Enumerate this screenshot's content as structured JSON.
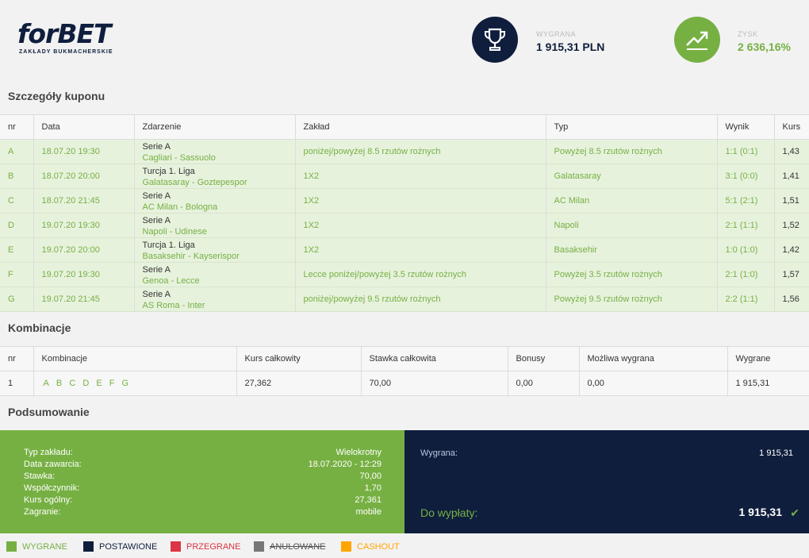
{
  "colors": {
    "green": "#76b043",
    "navy": "#0f1e3d",
    "red": "#dc3545",
    "gray": "#777777",
    "orange": "#ffa500"
  },
  "logo": {
    "main_for": "for",
    "main_bet": "BET",
    "subtitle": "ZAKŁADY BUKMACHERSKIE"
  },
  "header": {
    "win_label": "WYGRANA",
    "win_value": "1 915,31 PLN",
    "win_icon": "trophy-icon",
    "profit_label": "ZYSK",
    "profit_value": "2 636,16%",
    "profit_icon": "trending-up-icon"
  },
  "coupon": {
    "title": "Szczegóły kuponu",
    "columns": [
      "nr",
      "Data",
      "Zdarzenie",
      "Zakład",
      "Typ",
      "Wynik",
      "Kurs"
    ],
    "rows": [
      {
        "nr": "A",
        "date": "18.07.20 19:30",
        "league": "Serie A",
        "teams": "Cagliari - Sassuolo",
        "bet": "poniżej/powyżej 8.5 rzutów rożnych",
        "type": "Powyżej 8.5 rzutów rożnych",
        "result": "1:1 (0:1)",
        "odds": "1,43"
      },
      {
        "nr": "B",
        "date": "18.07.20 20:00",
        "league": "Turcja 1. Liga",
        "teams": "Galatasaray - Goztepespor",
        "bet": "1X2",
        "type": "Galatasaray",
        "result": "3:1 (0:0)",
        "odds": "1,41"
      },
      {
        "nr": "C",
        "date": "18.07.20 21:45",
        "league": "Serie A",
        "teams": "AC Milan - Bologna",
        "bet": "1X2",
        "type": "AC Milan",
        "result": "5:1 (2:1)",
        "odds": "1,51"
      },
      {
        "nr": "D",
        "date": "19.07.20 19:30",
        "league": "Serie A",
        "teams": "Napoli - Udinese",
        "bet": "1X2",
        "type": "Napoli",
        "result": "2:1 (1:1)",
        "odds": "1,52"
      },
      {
        "nr": "E",
        "date": "19.07.20 20:00",
        "league": "Turcja 1. Liga",
        "teams": "Basaksehir - Kayserispor",
        "bet": "1X2",
        "type": "Basaksehir",
        "result": "1:0 (1:0)",
        "odds": "1,42"
      },
      {
        "nr": "F",
        "date": "19.07.20 19:30",
        "league": "Serie A",
        "teams": "Genoa - Lecce",
        "bet": "Lecce poniżej/powyżej 3.5 rzutów rożnych",
        "type": "Powyżej 3.5 rzutów rożnych",
        "result": "2:1 (1:0)",
        "odds": "1,57"
      },
      {
        "nr": "G",
        "date": "19.07.20 21:45",
        "league": "Serie A",
        "teams": "AS Roma - Inter",
        "bet": "poniżej/powyżej 9.5 rzutów rożnych",
        "type": "Powyżej 9.5 rzutów rożnych",
        "result": "2:2 (1:1)",
        "odds": "1,56"
      }
    ]
  },
  "combinations": {
    "title": "Kombinacje",
    "columns": [
      "nr",
      "Kombinacje",
      "Kurs całkowity",
      "Stawka całkowita",
      "Bonusy",
      "Możliwa wygrana",
      "Wygrane"
    ],
    "rows": [
      {
        "nr": "1",
        "letters": [
          "A",
          "B",
          "C",
          "D",
          "E",
          "F",
          "G"
        ],
        "total_odds": "27,362",
        "total_stake": "70,00",
        "bonus": "0,00",
        "possible_win": "0,00",
        "won": "1 915,31"
      }
    ]
  },
  "summary": {
    "title": "Podsumowanie",
    "rows": [
      {
        "k": "Typ zakładu:",
        "v": "Wielokrotny"
      },
      {
        "k": "Data zawarcia:",
        "v": "18.07.2020 - 12:29"
      },
      {
        "k": "Stawka:",
        "v": "70,00"
      },
      {
        "k": "Współczynnik:",
        "v": "1,70"
      },
      {
        "k": "Kurs ogólny:",
        "v": "27,361"
      },
      {
        "k": "Zagranie:",
        "v": "mobile"
      }
    ],
    "win_label": "Wygrana:",
    "win_value": "1 915,31",
    "payout_label": "Do wypłaty:",
    "payout_value": "1 915,31",
    "payout_icon": "check-icon"
  },
  "legend": [
    {
      "label": "WYGRANE",
      "color": "#76b043",
      "text_color": "#76b043",
      "strike": false
    },
    {
      "label": "POSTAWIONE",
      "color": "#0f1e3d",
      "text_color": "#0f1e3d",
      "strike": false
    },
    {
      "label": "PRZEGRANE",
      "color": "#dc3545",
      "text_color": "#dc3545",
      "strike": false
    },
    {
      "label": "ANULOWANE",
      "color": "#777777",
      "text_color": "#555555",
      "strike": true
    },
    {
      "label": "CASHOUT",
      "color": "#ffa500",
      "text_color": "#ffa500",
      "strike": false
    }
  ]
}
